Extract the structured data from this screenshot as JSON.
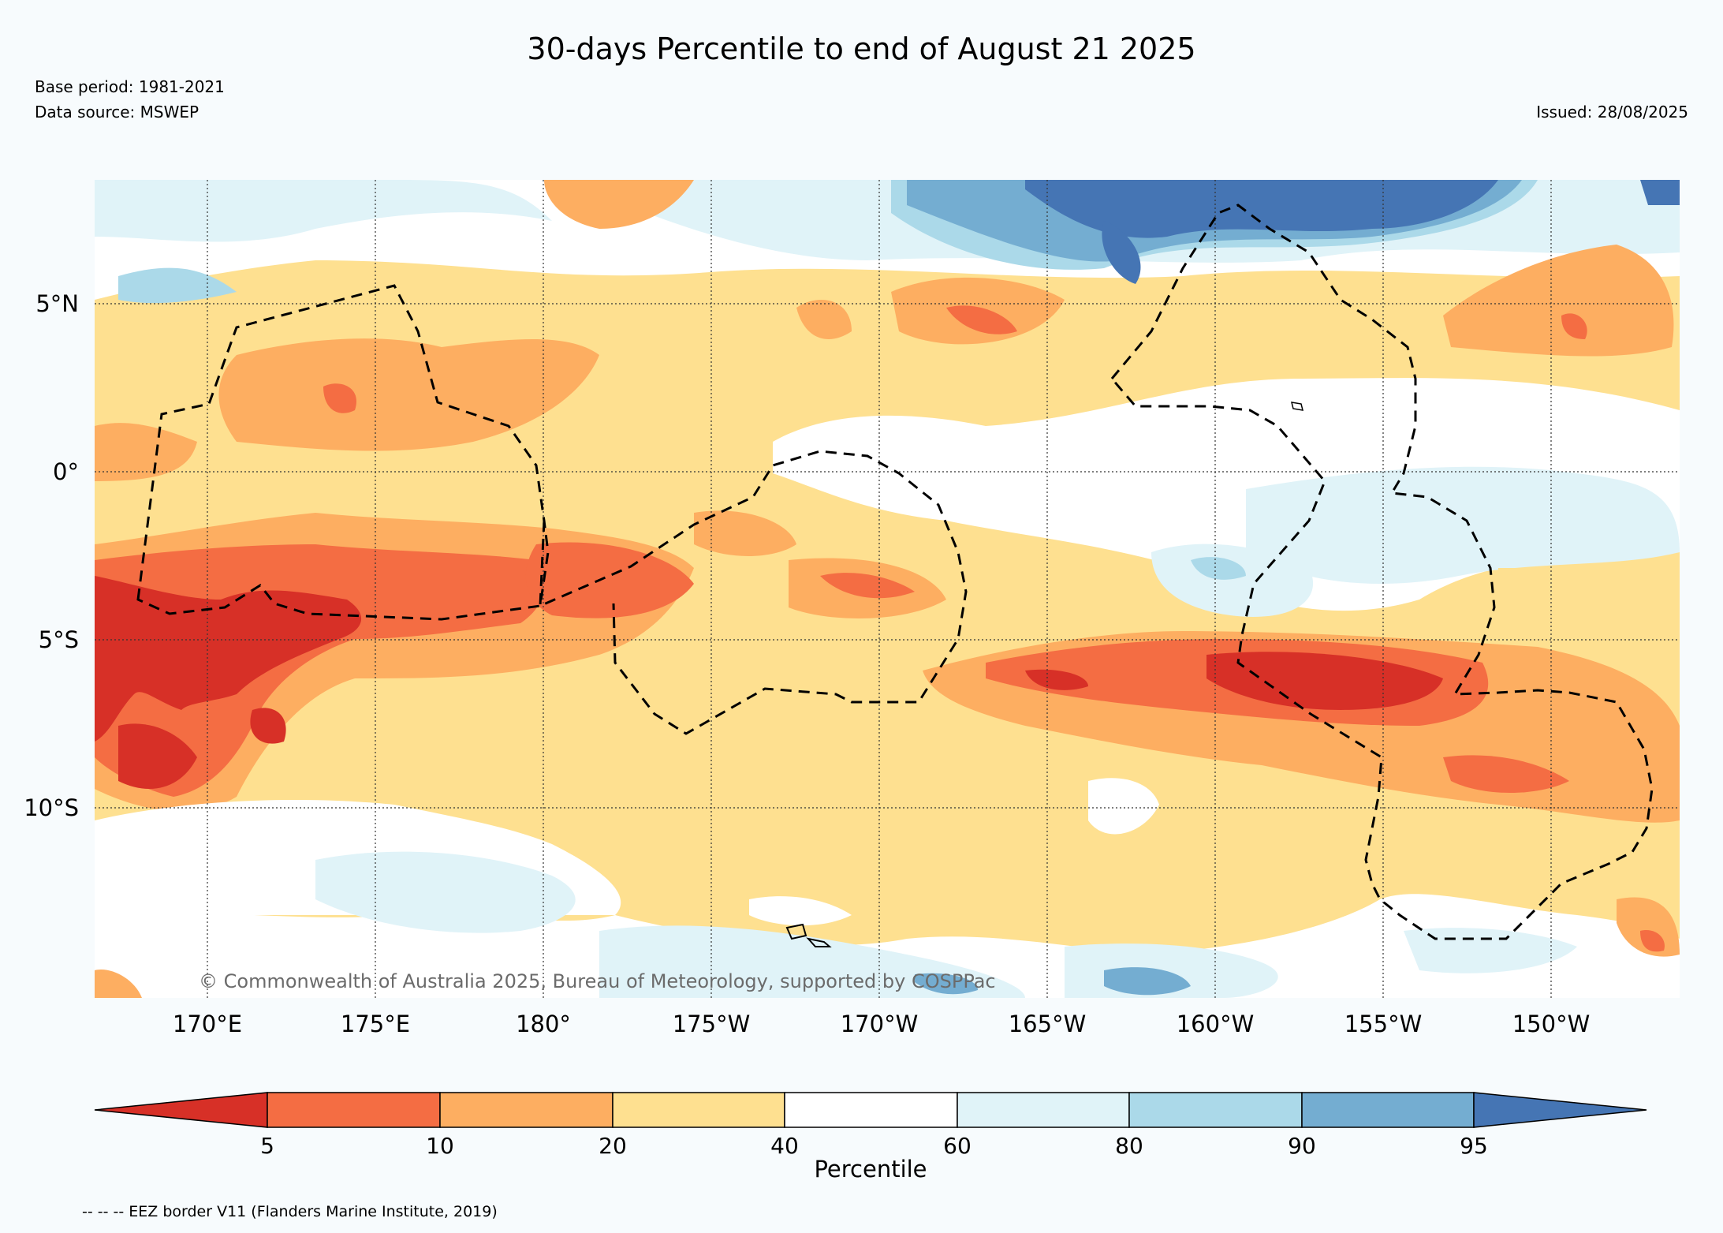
{
  "title": "30-days Percentile to end of August 21 2025",
  "base_period": "Base period: 1981-2021",
  "data_source": "Data source: MSWEP",
  "issued": "Issued: 28/08/2025",
  "copyright": "© Commonwealth of Australia 2025, Bureau of Meteorology, supported by COSPPac",
  "map": {
    "lat_ticks": [
      "5°N",
      "0°",
      "5°S",
      "10°S"
    ],
    "lon_ticks": [
      "170°E",
      "175°E",
      "180°",
      "175°W",
      "170°W",
      "165°W",
      "160°W",
      "155°W",
      "150°W"
    ],
    "eez_border": "dashed black",
    "gridlines": "dotted"
  },
  "colorbar": {
    "label": "Percentile",
    "ticks": [
      "5",
      "10",
      "20",
      "40",
      "60",
      "80",
      "90",
      "95"
    ],
    "colors": [
      "#d73027",
      "#f46d43",
      "#fdae61",
      "#fee090",
      "#ffffff",
      "#e0f3f8",
      "#abd9e9",
      "#74add1",
      "#4575b4"
    ]
  },
  "footnote": "-- -- -- EEZ border V11 (Flanders Marine Institute, 2019)"
}
